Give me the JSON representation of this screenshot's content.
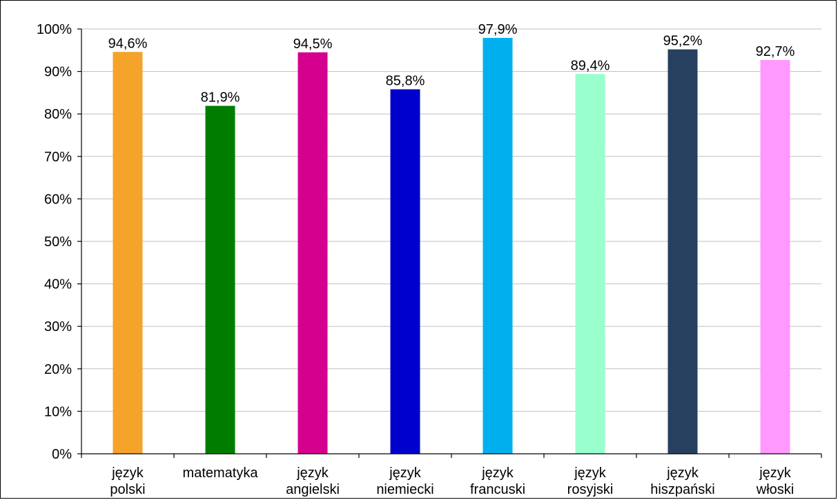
{
  "chart_data": {
    "type": "bar",
    "categories": [
      [
        "język",
        "polski"
      ],
      [
        "matematyka"
      ],
      [
        "język",
        "angielski"
      ],
      [
        "język",
        "niemiecki"
      ],
      [
        "język",
        "francuski"
      ],
      [
        "język",
        "rosyjski"
      ],
      [
        "język",
        "hiszpański"
      ],
      [
        "język",
        "włoski"
      ]
    ],
    "values": [
      94.6,
      81.9,
      94.5,
      85.8,
      97.9,
      89.4,
      95.2,
      92.7
    ],
    "data_labels": [
      "94,6%",
      "81,9%",
      "94,5%",
      "85,8%",
      "97,9%",
      "89,4%",
      "95,2%",
      "92,7%"
    ],
    "colors": [
      "#f5a32a",
      "#007d00",
      "#d6008f",
      "#0000cc",
      "#00b0ee",
      "#99ffcc",
      "#27405f",
      "#ff99ff"
    ],
    "y_ticks": [
      "0%",
      "10%",
      "20%",
      "30%",
      "40%",
      "50%",
      "60%",
      "70%",
      "80%",
      "90%",
      "100%"
    ],
    "ylim": [
      0,
      100
    ],
    "grid": true,
    "legend": false,
    "title": "",
    "xlabel": "",
    "ylabel": ""
  }
}
